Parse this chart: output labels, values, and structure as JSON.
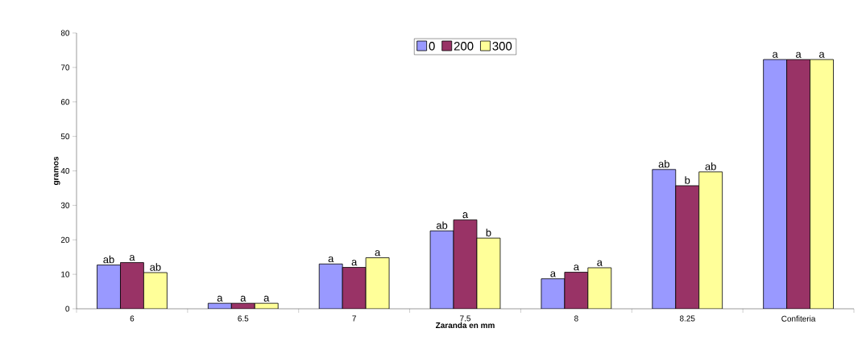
{
  "chart_data": {
    "type": "bar",
    "xlabel": "Zaranda en mm",
    "ylabel": "gramos",
    "categories": [
      "6",
      "6.5",
      "7",
      "7.5",
      "8",
      "8.25",
      "Confiteria"
    ],
    "series": [
      {
        "name": "0",
        "color": "#9999ff",
        "values": [
          12.7,
          1.6,
          13.0,
          22.6,
          8.7,
          40.4,
          72.3
        ],
        "value_labels": [
          "ab",
          "a",
          "a",
          "ab",
          "a",
          "ab",
          "a"
        ]
      },
      {
        "name": "200",
        "color": "#993366",
        "values": [
          13.4,
          1.6,
          12.0,
          25.8,
          10.6,
          35.7,
          72.3
        ],
        "value_labels": [
          "a",
          "a",
          "a",
          "a",
          "a",
          "b",
          "a"
        ]
      },
      {
        "name": "300",
        "color": "#ffff99",
        "values": [
          10.5,
          1.6,
          14.8,
          20.5,
          11.9,
          39.7,
          72.3
        ],
        "value_labels": [
          "ab",
          "a",
          "a",
          "b",
          "a",
          "ab",
          "a"
        ]
      }
    ],
    "ylim": [
      0,
      80
    ],
    "yticks": [
      0,
      10,
      20,
      30,
      40,
      50,
      60,
      70,
      80
    ],
    "legend": "top",
    "grid": false
  }
}
